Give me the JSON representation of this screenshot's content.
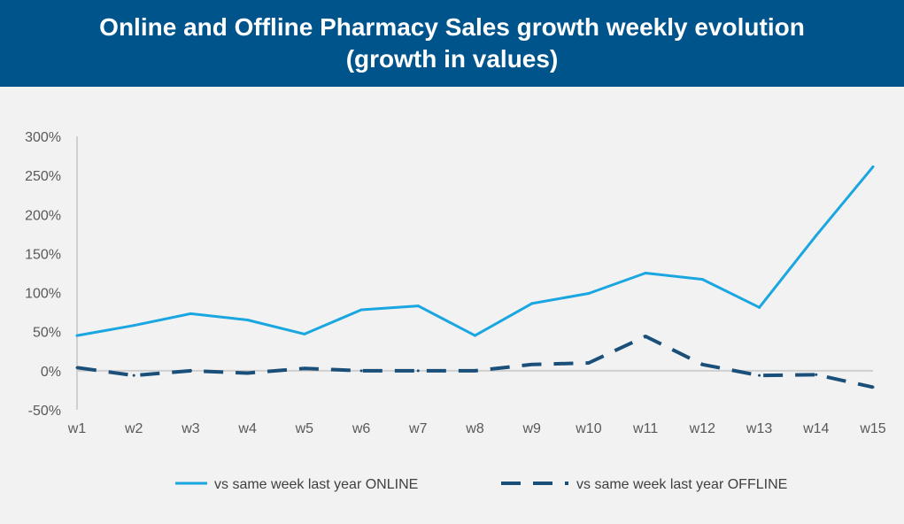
{
  "header": {
    "title_line1": "Online and Offline Pharmacy Sales growth weekly evolution",
    "title_line2": "(growth in values)"
  },
  "colors": {
    "header_bg": "#00548c",
    "online": "#1aa6e0",
    "offline": "#1a4f7a",
    "background": "#f2f2f2"
  },
  "chart_data": {
    "type": "line",
    "title": "Online and Offline Pharmacy Sales growth weekly evolution (growth in values)",
    "categories": [
      "w1",
      "w2",
      "w3",
      "w4",
      "w5",
      "w6",
      "w7",
      "w8",
      "w9",
      "w10",
      "w11",
      "w12",
      "w13",
      "w14",
      "w15"
    ],
    "series": [
      {
        "name": "vs same week last year ONLINE",
        "line_style": "solid",
        "color": "#1aa6e0",
        "values": [
          45,
          58,
          73,
          65,
          47,
          78,
          83,
          45,
          86,
          99,
          125,
          117,
          81,
          173,
          261
        ]
      },
      {
        "name": "vs same week last year OFFLINE",
        "line_style": "dashed",
        "color": "#1a4f7a",
        "values": [
          4,
          -6,
          0,
          -3,
          3,
          0,
          0,
          0,
          8,
          10,
          44,
          8,
          -6,
          -5,
          -21
        ]
      }
    ],
    "ylim": [
      -50,
      300
    ],
    "yticks": [
      -50,
      0,
      50,
      100,
      150,
      200,
      250,
      300
    ],
    "ytick_labels": [
      "-50%",
      "0%",
      "50%",
      "100%",
      "150%",
      "200%",
      "250%",
      "300%"
    ],
    "xlabel": "",
    "ylabel": "",
    "grid": false,
    "legend_position": "bottom"
  }
}
